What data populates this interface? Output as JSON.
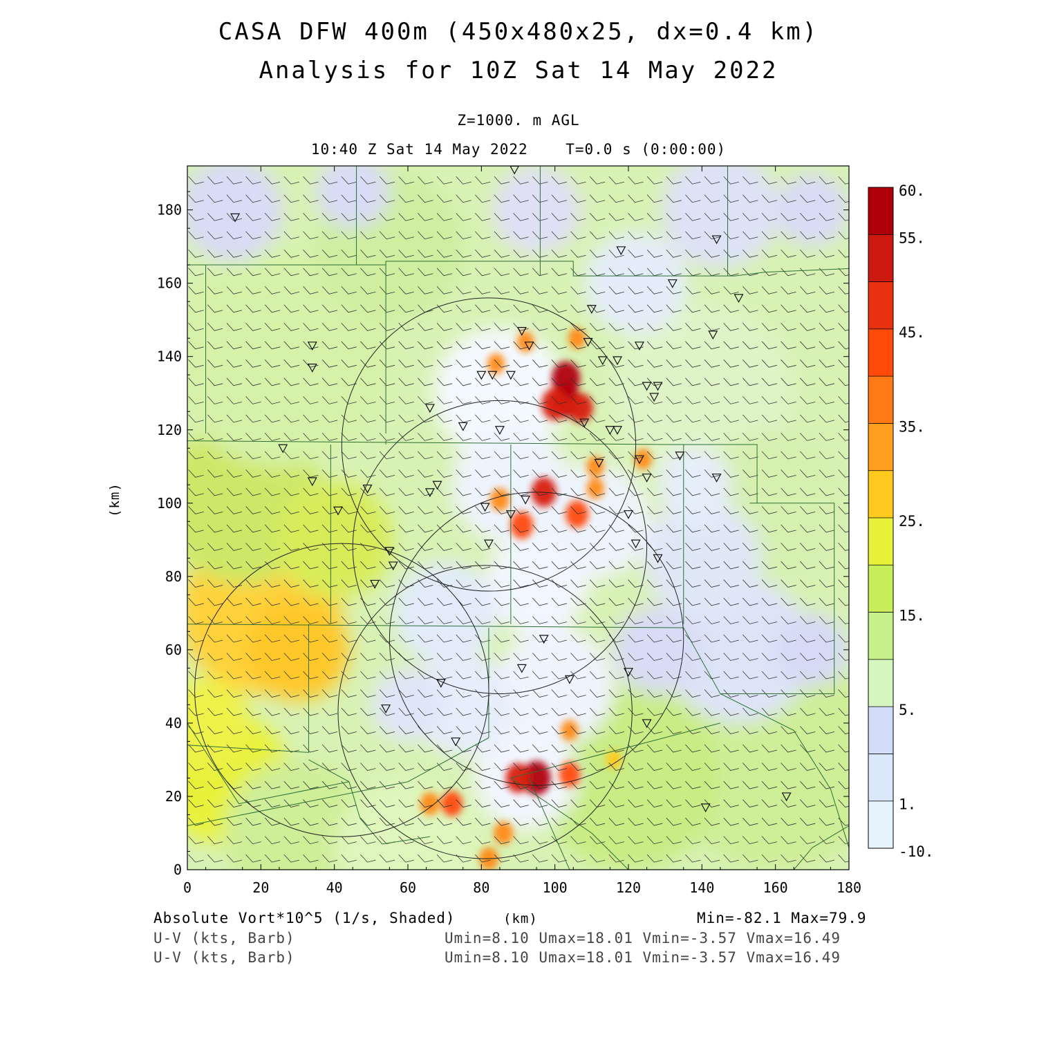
{
  "header": {
    "title_line1": "CASA DFW 400m (450x480x25, dx=0.4 km)",
    "title_line2": "Analysis for 10Z Sat 14 May 2022",
    "level": "Z=1000. m AGL",
    "time": "10:40 Z Sat 14 May 2022    T=0.0 s (0:00:00)"
  },
  "axes": {
    "x_ticks": [
      "0",
      "20",
      "40",
      "60",
      "80",
      "100",
      "120",
      "140",
      "160",
      "180"
    ],
    "y_ticks": [
      "0",
      "20",
      "40",
      "60",
      "80",
      "100",
      "120",
      "140",
      "160",
      "180"
    ],
    "x_unit": "(km)",
    "y_unit": "(km)"
  },
  "colorbar": {
    "labels": [
      "60.",
      "55.",
      "45.",
      "35.",
      "25.",
      "15.",
      "5.",
      "1.",
      "-10."
    ],
    "colors": [
      "#b0000a",
      "#cc1a10",
      "#e8320f",
      "#ff4a0a",
      "#ff7a14",
      "#ff9f1e",
      "#ffc91e",
      "#e8f23a",
      "#c8ee5a",
      "#c6f08a",
      "#d6f6c0",
      "#d2dcf8",
      "#dae8fa",
      "#e6f2fc"
    ]
  },
  "footer": {
    "field1_label": "Absolute Vort*10^5 (1/s, Shaded)",
    "x_unit_center": "(km)",
    "minmax": "Min=-82.1 Max=79.9",
    "barb1_label": "U-V (kts, Barb)",
    "barb1_stats": "Umin=8.10 Umax=18.01 Vmin=-3.57 Vmax=16.49",
    "barb2_label": "U-V (kts, Barb)",
    "barb2_stats": "Umin=8.10 Umax=18.01 Vmin=-3.57 Vmax=16.49"
  },
  "map": {
    "x_range_km": [
      0,
      180
    ],
    "y_range_km": [
      0,
      192
    ],
    "radar_circles_km": [
      {
        "cx": 82,
        "cy": 116,
        "r": 40
      },
      {
        "cx": 85,
        "cy": 88,
        "r": 40
      },
      {
        "cx": 95,
        "cy": 63,
        "r": 40
      },
      {
        "cx": 81,
        "cy": 43,
        "r": 40
      },
      {
        "cx": 42,
        "cy": 49,
        "r": 40
      }
    ],
    "stations_km": [
      [
        13,
        178
      ],
      [
        89,
        191
      ],
      [
        118,
        169
      ],
      [
        144,
        172
      ],
      [
        132,
        160
      ],
      [
        150,
        156
      ],
      [
        110,
        153
      ],
      [
        34,
        143
      ],
      [
        34,
        137
      ],
      [
        91,
        147
      ],
      [
        93,
        143
      ],
      [
        109,
        144
      ],
      [
        123,
        143
      ],
      [
        143,
        146
      ],
      [
        80,
        135
      ],
      [
        83,
        135
      ],
      [
        88,
        135
      ],
      [
        113,
        139
      ],
      [
        117,
        139
      ],
      [
        125,
        132
      ],
      [
        128,
        132
      ],
      [
        127,
        129
      ],
      [
        66,
        126
      ],
      [
        75,
        121
      ],
      [
        85,
        120
      ],
      [
        108,
        122
      ],
      [
        115,
        120
      ],
      [
        117,
        120
      ],
      [
        26,
        115
      ],
      [
        34,
        106
      ],
      [
        41,
        98
      ],
      [
        49,
        104
      ],
      [
        66,
        103
      ],
      [
        68,
        105
      ],
      [
        81,
        99
      ],
      [
        88,
        97
      ],
      [
        92,
        101
      ],
      [
        112,
        111
      ],
      [
        123,
        112
      ],
      [
        125,
        107
      ],
      [
        134,
        113
      ],
      [
        144,
        107
      ],
      [
        82,
        89
      ],
      [
        120,
        97
      ],
      [
        122,
        89
      ],
      [
        128,
        85
      ],
      [
        55,
        87
      ],
      [
        56,
        83
      ],
      [
        51,
        78
      ],
      [
        97,
        63
      ],
      [
        91,
        55
      ],
      [
        69,
        51
      ],
      [
        104,
        52
      ],
      [
        120,
        54
      ],
      [
        54,
        44
      ],
      [
        125,
        40
      ],
      [
        73,
        35
      ],
      [
        141,
        17
      ],
      [
        163,
        20
      ]
    ],
    "hotspots": [
      {
        "x": 103,
        "y": 134,
        "v": 55
      },
      {
        "x": 103,
        "y": 128,
        "v": 55
      },
      {
        "x": 107,
        "y": 126,
        "v": 45
      },
      {
        "x": 100,
        "y": 127,
        "v": 50
      },
      {
        "x": 97,
        "y": 103,
        "v": 45
      },
      {
        "x": 91,
        "y": 94,
        "v": 40
      },
      {
        "x": 106,
        "y": 97,
        "v": 40
      },
      {
        "x": 85,
        "y": 101,
        "v": 30
      },
      {
        "x": 95,
        "y": 25,
        "v": 55
      },
      {
        "x": 90,
        "y": 25,
        "v": 45
      },
      {
        "x": 104,
        "y": 26,
        "v": 35
      },
      {
        "x": 72,
        "y": 18,
        "v": 35
      },
      {
        "x": 86,
        "y": 10,
        "v": 30
      },
      {
        "x": 66,
        "y": 18,
        "v": 30
      },
      {
        "x": 82,
        "y": 3,
        "v": 30
      },
      {
        "x": 116,
        "y": 30,
        "v": 20
      },
      {
        "x": 104,
        "y": 38,
        "v": 25
      },
      {
        "x": 111,
        "y": 110,
        "v": 25
      },
      {
        "x": 124,
        "y": 112,
        "v": 25
      },
      {
        "x": 92,
        "y": 144,
        "v": 25
      },
      {
        "x": 84,
        "y": 138,
        "v": 25
      },
      {
        "x": 111,
        "y": 104,
        "v": 25
      },
      {
        "x": 106,
        "y": 145,
        "v": 25
      }
    ]
  }
}
